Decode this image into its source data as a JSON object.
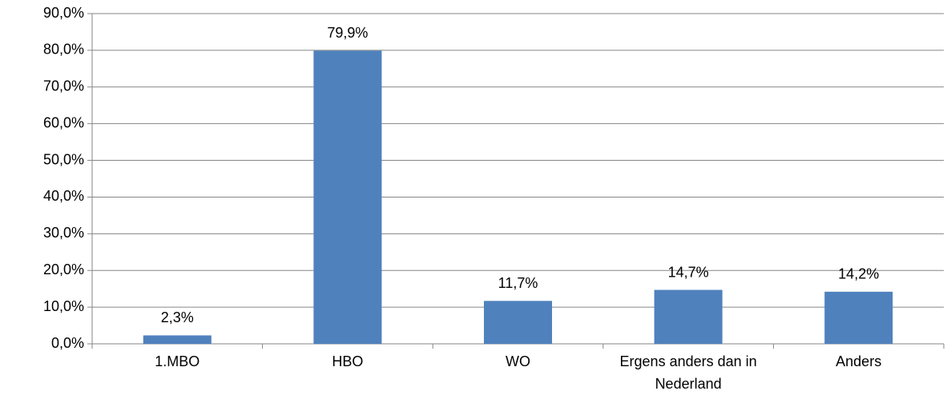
{
  "chart_data": {
    "type": "bar",
    "categories": [
      "1.MBO",
      "HBO",
      "WO",
      "Ergens anders dan in Nederland",
      "Anders"
    ],
    "values": [
      2.3,
      79.9,
      11.7,
      14.7,
      14.2
    ],
    "value_labels": [
      "2,3%",
      "79,9%",
      "11,7%",
      "14,7%",
      "14,2%"
    ],
    "color": "#4f81bd",
    "ylim": [
      0,
      90
    ],
    "yticks": [
      {
        "value": 0,
        "label": "0,0%"
      },
      {
        "value": 10,
        "label": "10,0%"
      },
      {
        "value": 20,
        "label": "20,0%"
      },
      {
        "value": 30,
        "label": "30,0%"
      },
      {
        "value": 40,
        "label": "40,0%"
      },
      {
        "value": 50,
        "label": "50,0%"
      },
      {
        "value": 60,
        "label": "60,0%"
      },
      {
        "value": 70,
        "label": "70,0%"
      },
      {
        "value": 80,
        "label": "80,0%"
      },
      {
        "value": 90,
        "label": "90,0%"
      }
    ],
    "grid": true
  }
}
